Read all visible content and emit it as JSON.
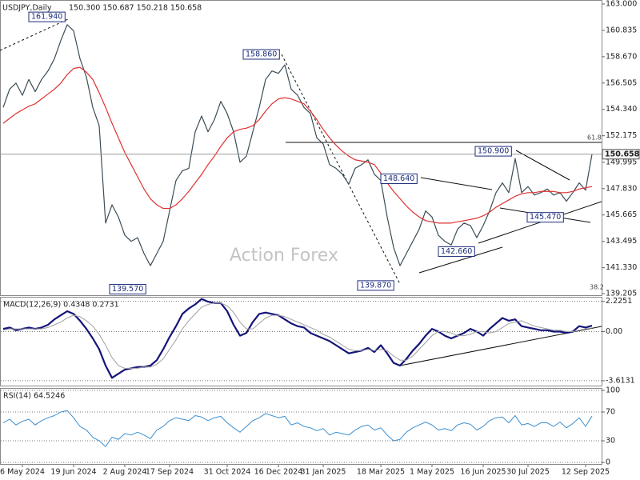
{
  "chart_data": [
    {
      "type": "line",
      "title": "USDJPY,Daily",
      "ohlc_label": "150.300 150.687 150.218 150.658",
      "watermark": "Action Forex",
      "categories": [
        null,
        null,
        null,
        "6 May 2024",
        null,
        null,
        null,
        null,
        null,
        null,
        null,
        "19 Jun 2024",
        null,
        null,
        null,
        null,
        null,
        null,
        null,
        "2 Aug 2024",
        null,
        null,
        null,
        null,
        null,
        null,
        "17 Sep 2024",
        null,
        null,
        null,
        null,
        null,
        null,
        null,
        null,
        "31 Oct 2024",
        null,
        null,
        null,
        null,
        null,
        null,
        null,
        "16 Dec 2024",
        null,
        null,
        null,
        null,
        null,
        null,
        "31 Jan 2025",
        null,
        null,
        null,
        null,
        null,
        null,
        null,
        null,
        "18 Mar 2025",
        null,
        null,
        null,
        null,
        null,
        null,
        null,
        "1 May 2025",
        null,
        null,
        null,
        null,
        null,
        null,
        null,
        "16 Jun 2025",
        null,
        null,
        null,
        null,
        null,
        null,
        "30 Jul 2025",
        null,
        null,
        null,
        null,
        null,
        null,
        null,
        null,
        "12 Sep 2025",
        null
      ],
      "series": [
        {
          "color": "#3c4d57",
          "values": [
            154.5,
            156,
            156.5,
            155.5,
            156.8,
            155.8,
            156.8,
            157.5,
            158.5,
            160,
            161.3,
            160.8,
            158.5,
            157,
            154.5,
            153,
            145,
            146.5,
            145.5,
            144,
            143.5,
            143.8,
            142.5,
            141.5,
            142.5,
            143.5,
            146,
            148.5,
            149.3,
            149.5,
            152.5,
            153.8,
            152.5,
            153.5,
            155,
            154,
            152.5,
            150,
            150.5,
            152.5,
            154.5,
            156.8,
            157.5,
            157.3,
            158,
            156,
            155.5,
            154.5,
            154,
            152,
            151.5,
            149.8,
            149.5,
            149,
            148.2,
            149.5,
            149.8,
            150.2,
            149,
            148.5,
            145.5,
            143,
            141.5,
            142.5,
            143.5,
            144.5,
            146,
            145.5,
            144,
            143.5,
            143.2,
            144.5,
            145,
            144.8,
            143.8,
            144.8,
            146,
            147.5,
            148.3,
            147.5,
            150.3,
            147.5,
            148,
            147.3,
            147.5,
            147.8,
            147.3,
            147.5,
            146.8,
            147.5,
            148.3,
            147.7,
            150.658
          ]
        },
        {
          "color": "#e03030",
          "values": [
            153.2,
            153.6,
            154,
            154.3,
            154.6,
            154.8,
            155.2,
            155.6,
            156,
            156.5,
            157.2,
            157.7,
            157.8,
            157.4,
            156.8,
            155.7,
            154.5,
            153.2,
            152,
            150.8,
            149.8,
            148.8,
            147.8,
            147,
            146.5,
            146.2,
            146.2,
            146.5,
            147,
            147.6,
            148.3,
            149,
            149.8,
            150.5,
            151.3,
            152,
            152.5,
            152.7,
            152.8,
            153,
            153.5,
            154.2,
            154.8,
            155.2,
            155.3,
            155.2,
            155,
            154.8,
            154.2,
            153.5,
            152.7,
            152,
            151.4,
            150.9,
            150.5,
            150.2,
            150.1,
            150,
            149.8,
            149.1,
            148.3,
            147.6,
            147,
            146.4,
            145.9,
            145.5,
            145.2,
            145.1,
            145,
            145,
            145,
            145.1,
            145.2,
            145.3,
            145.4,
            145.6,
            145.9,
            146.3,
            146.6,
            146.9,
            147.2,
            147.4,
            147.5,
            147.5,
            147.6,
            147.6,
            147.6,
            147.5,
            147.5,
            147.6,
            147.8,
            147.9,
            148
          ]
        }
      ],
      "ylim": [
        139.205,
        163
      ],
      "yticks": [
        {
          "value": 163,
          "label": "163.000"
        },
        {
          "value": 160.835,
          "label": "160.835"
        },
        {
          "value": 158.67,
          "label": "158.670"
        },
        {
          "value": 156.505,
          "label": "156.505"
        },
        {
          "value": 154.34,
          "label": "154.340"
        },
        {
          "value": 152.175,
          "label": "152.175"
        },
        {
          "value": 149.995,
          "label": "149.995"
        },
        {
          "value": 147.83,
          "label": "147.830"
        },
        {
          "value": 145.665,
          "label": "145.665"
        },
        {
          "value": 143.495,
          "label": "143.495"
        },
        {
          "value": 141.33,
          "label": "141.330"
        },
        {
          "value": 139.205,
          "label": "139.205"
        }
      ],
      "grid": false,
      "annotations": [
        {
          "value": 161.94,
          "label": "161.940"
        },
        {
          "value": 158.86,
          "label": "158.860"
        },
        {
          "value": 139.57,
          "label": "139.570"
        },
        {
          "value": 148.64,
          "label": "148.640"
        },
        {
          "value": 150.9,
          "label": "150.900"
        },
        {
          "value": 139.87,
          "label": "139.870"
        },
        {
          "value": 142.66,
          "label": "142.660"
        },
        {
          "value": 145.47,
          "label": "145.470"
        }
      ],
      "fib_labels": [
        61.8,
        38.2
      ],
      "last": {
        "value": 150.658,
        "label": "150.658"
      }
    },
    {
      "type": "line",
      "title": "MACD(12,26,9) 0.4348 0.2731",
      "series": [
        {
          "color": "#14147a",
          "values": [
            0.2,
            0.3,
            0.1,
            0.2,
            0.3,
            0.2,
            0.3,
            0.5,
            0.9,
            1.2,
            1.5,
            1.3,
            0.8,
            0.2,
            -0.5,
            -1.3,
            -2.5,
            -3.4,
            -3.1,
            -2.8,
            -2.7,
            -2.6,
            -2.6,
            -2.5,
            -2.1,
            -1.3,
            -0.4,
            0.4,
            1.3,
            1.7,
            2.0,
            2.4,
            2.2,
            2.1,
            2.1,
            1.5,
            0.5,
            -0.3,
            -0.1,
            0.7,
            1.3,
            1.4,
            1.3,
            1.2,
            0.9,
            0.6,
            0.4,
            0.3,
            -0.1,
            -0.3,
            -0.5,
            -0.7,
            -1.0,
            -1.3,
            -1.6,
            -1.5,
            -1.4,
            -1.2,
            -1.5,
            -1.0,
            -1.6,
            -2.3,
            -2.5,
            -2.0,
            -1.4,
            -0.9,
            -0.3,
            0.2,
            0.0,
            -0.3,
            -0.5,
            -0.3,
            -0.1,
            0.2,
            0.0,
            -0.3,
            0.2,
            0.6,
            1.0,
            0.8,
            0.9,
            0.4,
            0.3,
            0.2,
            0.1,
            0.1,
            0.0,
            0.0,
            -0.1,
            0.0,
            0.4,
            0.3,
            0.4348
          ]
        },
        {
          "color": "#a0a0a0",
          "values": [
            0.1,
            0.2,
            0.2,
            0.2,
            0.2,
            0.2,
            0.2,
            0.3,
            0.5,
            0.7,
            1.0,
            1.2,
            1.1,
            0.8,
            0.4,
            -0.2,
            -1.0,
            -1.9,
            -2.5,
            -2.7,
            -2.7,
            -2.7,
            -2.6,
            -2.6,
            -2.4,
            -2.0,
            -1.3,
            -0.6,
            0.2,
            0.8,
            1.3,
            1.8,
            2.0,
            2.1,
            2.1,
            1.9,
            1.4,
            0.7,
            0.2,
            0.2,
            0.6,
            1.0,
            1.2,
            1.2,
            1.1,
            0.9,
            0.7,
            0.5,
            0.3,
            0.1,
            -0.2,
            -0.4,
            -0.7,
            -1.0,
            -1.3,
            -1.4,
            -1.4,
            -1.3,
            -1.4,
            -1.3,
            -1.4,
            -1.8,
            -2.1,
            -2.1,
            -1.8,
            -1.3,
            -0.8,
            -0.3,
            0.0,
            0.0,
            -0.1,
            -0.3,
            -0.3,
            -0.2,
            0.0,
            0.0,
            -0.1,
            0.0,
            0.3,
            0.6,
            0.7,
            0.8,
            0.6,
            0.4,
            0.3,
            0.2,
            0.1,
            0.1,
            0.0,
            0.0,
            0.1,
            0.2,
            0.2731
          ]
        }
      ],
      "ylim": [
        -3.97,
        2.5
      ],
      "yticks": [
        2.2251,
        {
          "value": 0,
          "label": "0.00"
        },
        -3.6131
      ],
      "grid": true
    },
    {
      "type": "line",
      "title": "RSI(14) 64.5246",
      "series": [
        {
          "color": "#3a8fd0",
          "values": [
            55,
            60,
            52,
            57,
            60,
            52,
            58,
            62,
            65,
            70,
            72,
            62,
            50,
            45,
            35,
            30,
            22,
            35,
            32,
            40,
            38,
            42,
            38,
            33,
            45,
            50,
            58,
            62,
            60,
            58,
            65,
            63,
            58,
            62,
            64,
            55,
            48,
            42,
            50,
            58,
            62,
            68,
            65,
            62,
            64,
            52,
            55,
            50,
            48,
            44,
            47,
            38,
            42,
            40,
            38,
            45,
            50,
            52,
            45,
            48,
            38,
            30,
            32,
            42,
            48,
            52,
            56,
            52,
            45,
            47,
            44,
            52,
            55,
            53,
            45,
            50,
            58,
            62,
            63,
            55,
            65,
            52,
            54,
            50,
            55,
            55,
            50,
            56,
            48,
            54,
            62,
            50,
            64.5246
          ]
        }
      ],
      "ylim": [
        -4.4,
        102.2
      ],
      "yticks": [
        100,
        70,
        30,
        0
      ],
      "grid": true
    }
  ]
}
